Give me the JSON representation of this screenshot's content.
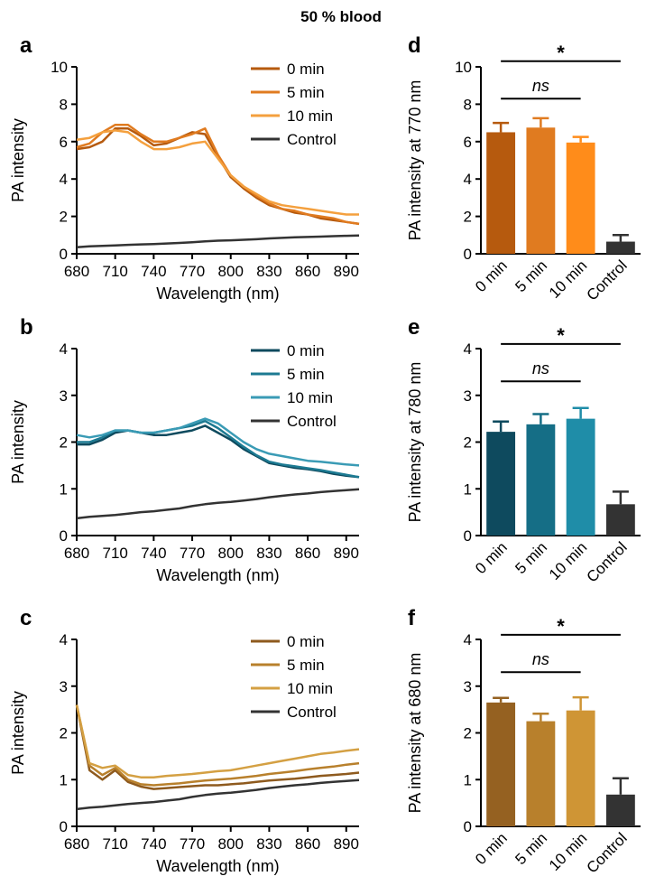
{
  "figure_title": "50 % blood",
  "chart_data": [
    {
      "panel": "a",
      "type": "line",
      "xlabel": "Wavelength (nm)",
      "ylabel": "PA intensity",
      "xlim": [
        680,
        900
      ],
      "ylim": [
        0,
        10
      ],
      "xticks": [
        680,
        710,
        740,
        770,
        800,
        830,
        860,
        890
      ],
      "yticks": [
        0,
        2,
        4,
        6,
        8,
        10
      ],
      "legend_position": "top-right",
      "x": [
        680,
        690,
        700,
        710,
        720,
        730,
        740,
        750,
        760,
        770,
        780,
        790,
        800,
        810,
        820,
        830,
        840,
        850,
        860,
        870,
        880,
        890,
        900
      ],
      "series": [
        {
          "name": "0 min",
          "color": "#B65A0E",
          "values": [
            5.6,
            5.7,
            6.0,
            6.7,
            6.7,
            6.3,
            5.8,
            5.9,
            6.2,
            6.5,
            6.4,
            5.2,
            4.1,
            3.5,
            3.0,
            2.6,
            2.4,
            2.2,
            2.1,
            1.9,
            1.8,
            1.7,
            1.6
          ]
        },
        {
          "name": "5 min",
          "color": "#E07B20",
          "values": [
            5.7,
            5.9,
            6.5,
            6.9,
            6.9,
            6.4,
            6.0,
            6.0,
            6.2,
            6.4,
            6.7,
            5.3,
            4.2,
            3.6,
            3.1,
            2.7,
            2.4,
            2.3,
            2.1,
            2.0,
            1.9,
            1.7,
            1.6
          ]
        },
        {
          "name": "10 min",
          "color": "#F4A03E",
          "values": [
            6.1,
            6.2,
            6.5,
            6.6,
            6.5,
            6.0,
            5.6,
            5.6,
            5.7,
            5.9,
            6.0,
            5.1,
            4.2,
            3.6,
            3.2,
            2.8,
            2.6,
            2.5,
            2.4,
            2.3,
            2.2,
            2.1,
            2.1
          ]
        },
        {
          "name": "Control",
          "color": "#333333",
          "values": [
            0.35,
            0.4,
            0.42,
            0.45,
            0.48,
            0.5,
            0.52,
            0.55,
            0.58,
            0.62,
            0.66,
            0.7,
            0.72,
            0.75,
            0.78,
            0.82,
            0.85,
            0.88,
            0.9,
            0.92,
            0.94,
            0.96,
            0.98
          ]
        }
      ]
    },
    {
      "panel": "b",
      "type": "line",
      "xlabel": "Wavelength (nm)",
      "ylabel": "PA intensity",
      "xlim": [
        680,
        900
      ],
      "ylim": [
        0,
        4
      ],
      "xticks": [
        680,
        710,
        740,
        770,
        800,
        830,
        860,
        890
      ],
      "yticks": [
        0,
        1,
        2,
        3,
        4
      ],
      "legend_position": "top-right",
      "x": [
        680,
        690,
        700,
        710,
        720,
        730,
        740,
        750,
        760,
        770,
        780,
        790,
        800,
        810,
        820,
        830,
        840,
        850,
        860,
        870,
        880,
        890,
        900
      ],
      "series": [
        {
          "name": "0 min",
          "color": "#0E4A5E",
          "values": [
            1.95,
            1.95,
            2.05,
            2.2,
            2.25,
            2.2,
            2.15,
            2.15,
            2.2,
            2.25,
            2.35,
            2.2,
            2.05,
            1.85,
            1.7,
            1.55,
            1.5,
            1.45,
            1.42,
            1.38,
            1.32,
            1.28,
            1.25
          ]
        },
        {
          "name": "5 min",
          "color": "#1C7A92",
          "values": [
            2.0,
            2.0,
            2.1,
            2.25,
            2.25,
            2.2,
            2.2,
            2.25,
            2.3,
            2.35,
            2.45,
            2.3,
            2.1,
            1.9,
            1.72,
            1.58,
            1.52,
            1.48,
            1.44,
            1.4,
            1.35,
            1.3,
            1.25
          ]
        },
        {
          "name": "10 min",
          "color": "#3A9BB5",
          "values": [
            2.15,
            2.1,
            2.15,
            2.25,
            2.25,
            2.2,
            2.2,
            2.25,
            2.3,
            2.4,
            2.5,
            2.4,
            2.2,
            2.0,
            1.85,
            1.75,
            1.7,
            1.65,
            1.6,
            1.58,
            1.55,
            1.52,
            1.5
          ]
        },
        {
          "name": "Control",
          "color": "#333333",
          "values": [
            0.37,
            0.4,
            0.42,
            0.44,
            0.47,
            0.5,
            0.52,
            0.55,
            0.58,
            0.63,
            0.67,
            0.7,
            0.72,
            0.75,
            0.78,
            0.82,
            0.85,
            0.88,
            0.9,
            0.93,
            0.95,
            0.97,
            0.99
          ]
        }
      ]
    },
    {
      "panel": "c",
      "type": "line",
      "xlabel": "Wavelength (nm)",
      "ylabel": "PA intensity",
      "xlim": [
        680,
        900
      ],
      "ylim": [
        0,
        4
      ],
      "xticks": [
        680,
        710,
        740,
        770,
        800,
        830,
        860,
        890
      ],
      "yticks": [
        0,
        1,
        2,
        3,
        4
      ],
      "legend_position": "top-right",
      "x": [
        680,
        690,
        700,
        710,
        720,
        730,
        740,
        750,
        760,
        770,
        780,
        790,
        800,
        810,
        820,
        830,
        840,
        850,
        860,
        870,
        880,
        890,
        900
      ],
      "series": [
        {
          "name": "0 min",
          "color": "#8E5A1E",
          "values": [
            2.6,
            1.2,
            1.0,
            1.2,
            0.95,
            0.85,
            0.8,
            0.82,
            0.84,
            0.86,
            0.88,
            0.88,
            0.9,
            0.92,
            0.95,
            0.98,
            1.0,
            1.02,
            1.05,
            1.08,
            1.1,
            1.12,
            1.15
          ]
        },
        {
          "name": "5 min",
          "color": "#B8802C",
          "values": [
            2.6,
            1.3,
            1.1,
            1.25,
            1.0,
            0.9,
            0.88,
            0.9,
            0.92,
            0.95,
            0.98,
            1.0,
            1.02,
            1.05,
            1.08,
            1.12,
            1.15,
            1.18,
            1.22,
            1.25,
            1.28,
            1.32,
            1.35
          ]
        },
        {
          "name": "10 min",
          "color": "#D4A043",
          "values": [
            2.6,
            1.35,
            1.25,
            1.3,
            1.1,
            1.05,
            1.05,
            1.08,
            1.1,
            1.12,
            1.15,
            1.18,
            1.2,
            1.25,
            1.3,
            1.35,
            1.4,
            1.45,
            1.5,
            1.55,
            1.58,
            1.62,
            1.65
          ]
        },
        {
          "name": "Control",
          "color": "#333333",
          "values": [
            0.37,
            0.4,
            0.42,
            0.45,
            0.48,
            0.5,
            0.52,
            0.55,
            0.58,
            0.63,
            0.67,
            0.7,
            0.72,
            0.75,
            0.78,
            0.82,
            0.85,
            0.88,
            0.9,
            0.93,
            0.95,
            0.97,
            0.99
          ]
        }
      ]
    },
    {
      "panel": "d",
      "type": "bar",
      "ylabel": "PA intensity at 770 nm",
      "ylim": [
        0,
        10
      ],
      "yticks": [
        0,
        2,
        4,
        6,
        8,
        10
      ],
      "categories": [
        "0 min",
        "5 min",
        "10 min",
        "Control"
      ],
      "values": [
        6.5,
        6.75,
        5.95,
        0.65
      ],
      "errors": [
        0.5,
        0.5,
        0.3,
        0.35
      ],
      "colors": [
        "#B65A0E",
        "#E07B20",
        "#FF8C1A",
        "#333333"
      ],
      "annotations": [
        {
          "text": "*",
          "from": 0,
          "to": 3,
          "level": 10.3
        },
        {
          "text": "ns",
          "from": 0,
          "to": 2,
          "level": 8.3
        }
      ]
    },
    {
      "panel": "e",
      "type": "bar",
      "ylabel": "PA intensity at 780 nm",
      "ylim": [
        0,
        4
      ],
      "yticks": [
        0,
        1,
        2,
        3,
        4
      ],
      "categories": [
        "0 min",
        "5 min",
        "10 min",
        "Control"
      ],
      "values": [
        2.22,
        2.38,
        2.5,
        0.67
      ],
      "errors": [
        0.22,
        0.22,
        0.23,
        0.27
      ],
      "colors": [
        "#0E4A5E",
        "#156E86",
        "#1F8DA8",
        "#333333"
      ],
      "annotations": [
        {
          "text": "*",
          "from": 0,
          "to": 3,
          "level": 4.1
        },
        {
          "text": "ns",
          "from": 0,
          "to": 2,
          "level": 3.3
        }
      ]
    },
    {
      "panel": "f",
      "type": "bar",
      "ylabel": "PA intensity at 680 nm",
      "ylim": [
        0,
        4
      ],
      "yticks": [
        0,
        1,
        2,
        3,
        4
      ],
      "categories": [
        "0 min",
        "5 min",
        "10 min",
        "Control"
      ],
      "values": [
        2.65,
        2.25,
        2.48,
        0.68
      ],
      "errors": [
        0.1,
        0.16,
        0.28,
        0.35
      ],
      "colors": [
        "#956121",
        "#B8802C",
        "#CF9535",
        "#333333"
      ],
      "annotations": [
        {
          "text": "*",
          "from": 0,
          "to": 3,
          "level": 4.1
        },
        {
          "text": "ns",
          "from": 0,
          "to": 2,
          "level": 3.3
        }
      ]
    }
  ]
}
